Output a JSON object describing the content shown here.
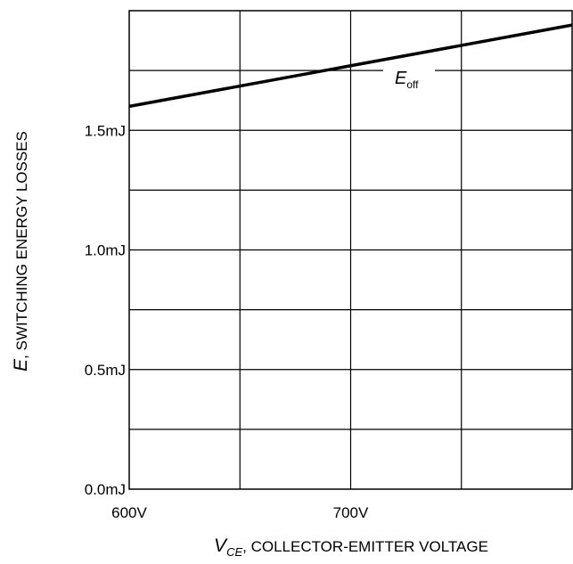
{
  "chart_data": {
    "type": "line",
    "x": [
      600,
      800
    ],
    "series": [
      {
        "name": "E_off",
        "label_main": "E",
        "label_sub": "off",
        "values": [
          1.6,
          1.94
        ]
      }
    ],
    "xlim": [
      600,
      800
    ],
    "ylim": [
      0.0,
      2.0
    ],
    "x_ticks": [
      {
        "value": 600,
        "label": "600V"
      },
      {
        "value": 700,
        "label": "700V"
      }
    ],
    "y_ticks": [
      {
        "value": 0.0,
        "label": "0.0mJ"
      },
      {
        "value": 0.5,
        "label": "0.5mJ"
      },
      {
        "value": 1.0,
        "label": "1.0mJ"
      },
      {
        "value": 1.5,
        "label": "1.5mJ"
      }
    ],
    "x_gridlines": [
      650,
      700,
      750
    ],
    "y_gridlines": [
      0.25,
      0.5,
      0.75,
      1.0,
      1.25,
      1.5,
      1.75
    ],
    "xlabel_symbol": "V",
    "xlabel_subscript": "CE",
    "xlabel_text": ", COLLECTOR-EMITTER VOLTAGE",
    "ylabel_symbol": "E",
    "ylabel_text": ", SWITCHING ENERGY LOSSES",
    "grid": true,
    "line_color": "#000000"
  }
}
